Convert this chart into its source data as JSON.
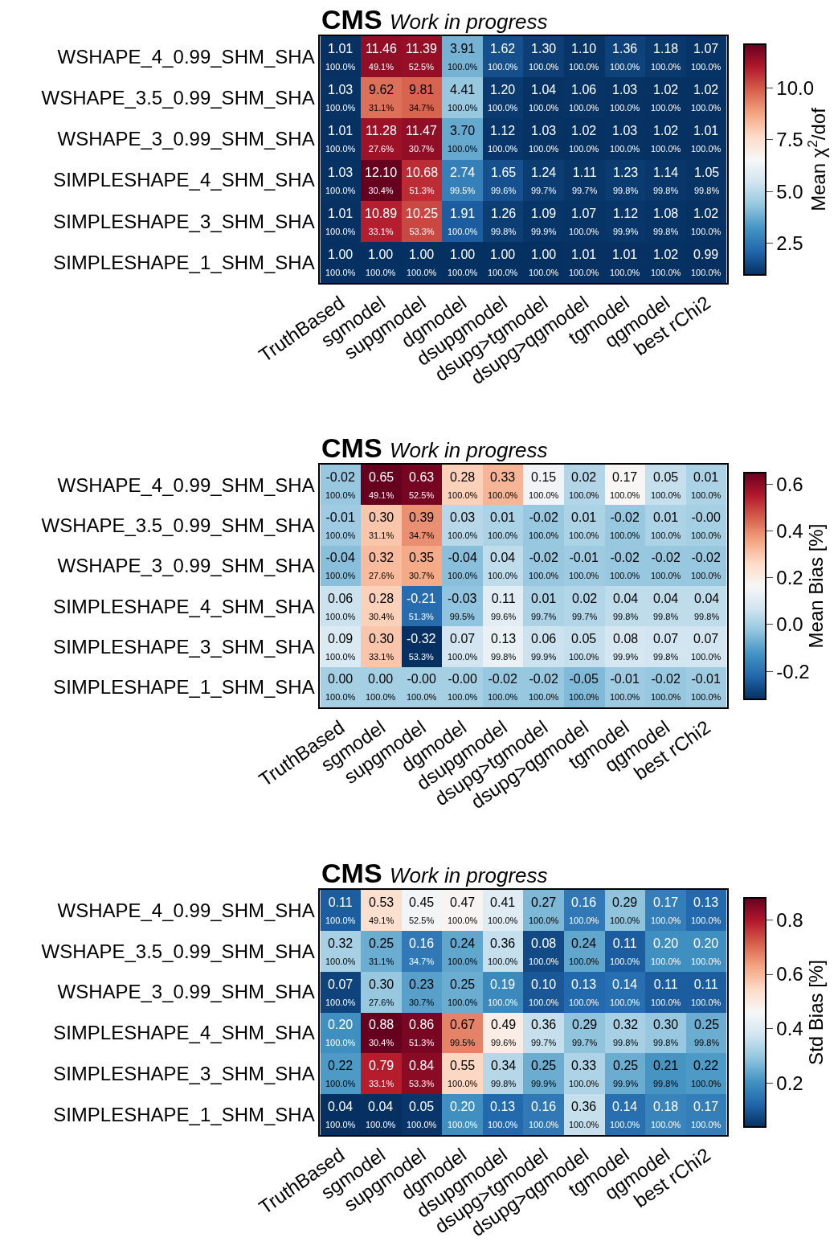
{
  "chart_data": [
    {
      "type": "heatmap",
      "title": "CMS",
      "subtitle": "Work in progress",
      "clabel": "Mean χ$^{2}$/dof",
      "categories": [
        "TruthBased",
        "sgmodel",
        "supgmodel",
        "dgmodel",
        "dsupgmodel",
        "dsupg>tgmodel",
        "dsupg>qgmodel",
        "tgmodel",
        "qgmodel",
        "best rChi2"
      ],
      "y_categories": [
        "WSHAPE_4_0.99_SHM_SHA",
        "WSHAPE_3.5_0.99_SHM_SHA",
        "WSHAPE_3_0.99_SHM_SHA",
        "SIMPLESHAPE_4_SHM_SHA",
        "SIMPLESHAPE_3_SHM_SHA",
        "SIMPLESHAPE_1_SHM_SHA"
      ],
      "cells": [
        [
          1.01,
          11.46,
          11.39,
          3.91,
          1.62,
          1.3,
          1.1,
          1.36,
          1.18,
          1.07
        ],
        [
          1.03,
          9.62,
          9.81,
          4.41,
          1.2,
          1.04,
          1.06,
          1.03,
          1.02,
          1.02
        ],
        [
          1.01,
          11.28,
          11.47,
          3.7,
          1.12,
          1.03,
          1.02,
          1.03,
          1.02,
          1.01
        ],
        [
          1.03,
          12.1,
          10.68,
          2.74,
          1.65,
          1.24,
          1.11,
          1.23,
          1.14,
          1.05
        ],
        [
          1.01,
          10.89,
          10.25,
          1.91,
          1.26,
          1.09,
          1.07,
          1.12,
          1.08,
          1.02
        ],
        [
          1.0,
          1.0,
          1.0,
          1.0,
          1.0,
          1.0,
          1.01,
          1.01,
          1.02,
          0.99
        ]
      ],
      "cell_labels": [
        [
          "1.01\n100.0%",
          "11.46\n49.1%",
          "11.39\n52.5%",
          "3.91\n100.0%",
          "1.62\n100.0%",
          "1.30\n100.0%",
          "1.10\n100.0%",
          "1.36\n100.0%",
          "1.18\n100.0%",
          "1.07\n100.0%"
        ],
        [
          "1.03\n100.0%",
          "9.62\n31.1%",
          "9.81\n34.7%",
          "4.41\n100.0%",
          "1.20\n100.0%",
          "1.04\n100.0%",
          "1.06\n100.0%",
          "1.03\n100.0%",
          "1.02\n100.0%",
          "1.02\n100.0%"
        ],
        [
          "1.01\n100.0%",
          "11.28\n27.6%",
          "11.47\n30.7%",
          "3.70\n100.0%",
          "1.12\n100.0%",
          "1.03\n100.0%",
          "1.02\n100.0%",
          "1.03\n100.0%",
          "1.02\n100.0%",
          "1.01\n100.0%"
        ],
        [
          "1.03\n100.0%",
          "12.10\n30.4%",
          "10.68\n51.3%",
          "2.74\n99.5%",
          "1.65\n99.6%",
          "1.24\n99.7%",
          "1.11\n99.7%",
          "1.23\n99.8%",
          "1.14\n99.8%",
          "1.05\n99.8%"
        ],
        [
          "1.01\n100.0%",
          "10.89\n33.1%",
          "10.25\n53.3%",
          "1.91\n100.0%",
          "1.26\n99.8%",
          "1.09\n99.9%",
          "1.07\n100.0%",
          "1.12\n99.9%",
          "1.08\n99.8%",
          "1.02\n100.0%"
        ],
        [
          "1.00\n100.0%",
          "1.00\n100.0%",
          "1.00\n100.0%",
          "1.00\n100.0%",
          "1.00\n100.0%",
          "1.00\n100.0%",
          "1.01\n100.0%",
          "1.01\n100.0%",
          "1.02\n100.0%",
          "0.99\n100.0%"
        ]
      ],
      "clim": [
        0.99,
        12.1
      ],
      "cticks": [
        {
          "value": 2.5,
          "label": "2.5"
        },
        {
          "value": 5.0,
          "label": "5.0"
        },
        {
          "value": 7.5,
          "label": "7.5"
        },
        {
          "value": 10.0,
          "label": "10.0"
        }
      ]
    },
    {
      "type": "heatmap",
      "title": "CMS",
      "subtitle": "Work in progress",
      "clabel": "Mean Bias [%]",
      "categories": [
        "TruthBased",
        "sgmodel",
        "supgmodel",
        "dgmodel",
        "dsupgmodel",
        "dsupg>tgmodel",
        "dsupg>qgmodel",
        "tgmodel",
        "qgmodel",
        "best rChi2"
      ],
      "y_categories": [
        "WSHAPE_4_0.99_SHM_SHA",
        "WSHAPE_3.5_0.99_SHM_SHA",
        "WSHAPE_3_0.99_SHM_SHA",
        "SIMPLESHAPE_4_SHM_SHA",
        "SIMPLESHAPE_3_SHM_SHA",
        "SIMPLESHAPE_1_SHM_SHA"
      ],
      "cells": [
        [
          -0.02,
          0.65,
          0.63,
          0.28,
          0.33,
          0.15,
          0.02,
          0.17,
          0.05,
          0.01
        ],
        [
          -0.01,
          0.3,
          0.39,
          0.03,
          0.01,
          -0.02,
          0.01,
          -0.02,
          0.01,
          0.0
        ],
        [
          -0.04,
          0.32,
          0.35,
          -0.04,
          0.04,
          -0.02,
          -0.01,
          -0.02,
          -0.02,
          -0.02
        ],
        [
          0.06,
          0.28,
          -0.21,
          -0.03,
          0.11,
          0.01,
          0.02,
          0.04,
          0.04,
          0.04
        ],
        [
          0.09,
          0.3,
          -0.32,
          0.07,
          0.13,
          0.06,
          0.05,
          0.08,
          0.07,
          0.07
        ],
        [
          0.0,
          0.0,
          0.0,
          0.0,
          -0.02,
          -0.02,
          -0.05,
          -0.01,
          -0.02,
          -0.01
        ]
      ],
      "cell_labels": [
        [
          "-0.02\n100.0%",
          "0.65\n49.1%",
          "0.63\n52.5%",
          "0.28\n100.0%",
          "0.33\n100.0%",
          "0.15\n100.0%",
          "0.02\n100.0%",
          "0.17\n100.0%",
          "0.05\n100.0%",
          "0.01\n100.0%"
        ],
        [
          "-0.01\n100.0%",
          "0.30\n31.1%",
          "0.39\n34.7%",
          "0.03\n100.0%",
          "0.01\n100.0%",
          "-0.02\n100.0%",
          "0.01\n100.0%",
          "-0.02\n100.0%",
          "0.01\n100.0%",
          "-0.00\n100.0%"
        ],
        [
          "-0.04\n100.0%",
          "0.32\n27.6%",
          "0.35\n30.7%",
          "-0.04\n100.0%",
          "0.04\n100.0%",
          "-0.02\n100.0%",
          "-0.01\n100.0%",
          "-0.02\n100.0%",
          "-0.02\n100.0%",
          "-0.02\n100.0%"
        ],
        [
          "0.06\n100.0%",
          "0.28\n30.4%",
          "-0.21\n51.3%",
          "-0.03\n99.5%",
          "0.11\n99.6%",
          "0.01\n99.7%",
          "0.02\n99.7%",
          "0.04\n99.8%",
          "0.04\n99.8%",
          "0.04\n99.8%"
        ],
        [
          "0.09\n100.0%",
          "0.30\n33.1%",
          "-0.32\n53.3%",
          "0.07\n100.0%",
          "0.13\n99.8%",
          "0.06\n99.9%",
          "0.05\n100.0%",
          "0.08\n99.9%",
          "0.07\n99.8%",
          "0.07\n100.0%"
        ],
        [
          "0.00\n100.0%",
          "0.00\n100.0%",
          "-0.00\n100.0%",
          "-0.00\n100.0%",
          "-0.02\n100.0%",
          "-0.02\n100.0%",
          "-0.05\n100.0%",
          "-0.01\n100.0%",
          "-0.02\n100.0%",
          "-0.01\n100.0%"
        ]
      ],
      "clim": [
        -0.32,
        0.65
      ],
      "cticks": [
        {
          "value": -0.2,
          "label": "-0.2"
        },
        {
          "value": 0.0,
          "label": "0.0"
        },
        {
          "value": 0.2,
          "label": "0.2"
        },
        {
          "value": 0.4,
          "label": "0.4"
        },
        {
          "value": 0.6,
          "label": "0.6"
        }
      ]
    },
    {
      "type": "heatmap",
      "title": "CMS",
      "subtitle": "Work in progress",
      "clabel": "Std Bias [%]",
      "categories": [
        "TruthBased",
        "sgmodel",
        "supgmodel",
        "dgmodel",
        "dsupgmodel",
        "dsupg>tgmodel",
        "dsupg>qgmodel",
        "tgmodel",
        "qgmodel",
        "best rChi2"
      ],
      "y_categories": [
        "WSHAPE_4_0.99_SHM_SHA",
        "WSHAPE_3.5_0.99_SHM_SHA",
        "WSHAPE_3_0.99_SHM_SHA",
        "SIMPLESHAPE_4_SHM_SHA",
        "SIMPLESHAPE_3_SHM_SHA",
        "SIMPLESHAPE_1_SHM_SHA"
      ],
      "cells": [
        [
          0.11,
          0.53,
          0.45,
          0.47,
          0.41,
          0.27,
          0.16,
          0.29,
          0.17,
          0.13
        ],
        [
          0.32,
          0.25,
          0.16,
          0.24,
          0.36,
          0.08,
          0.24,
          0.11,
          0.2,
          0.2
        ],
        [
          0.07,
          0.3,
          0.23,
          0.25,
          0.19,
          0.1,
          0.13,
          0.14,
          0.11,
          0.11
        ],
        [
          0.2,
          0.88,
          0.86,
          0.67,
          0.49,
          0.36,
          0.29,
          0.32,
          0.3,
          0.25
        ],
        [
          0.22,
          0.79,
          0.84,
          0.55,
          0.34,
          0.25,
          0.33,
          0.25,
          0.21,
          0.22
        ],
        [
          0.04,
          0.04,
          0.05,
          0.2,
          0.13,
          0.16,
          0.36,
          0.14,
          0.18,
          0.17
        ]
      ],
      "cell_labels": [
        [
          "0.11\n100.0%",
          "0.53\n49.1%",
          "0.45\n52.5%",
          "0.47\n100.0%",
          "0.41\n100.0%",
          "0.27\n100.0%",
          "0.16\n100.0%",
          "0.29\n100.0%",
          "0.17\n100.0%",
          "0.13\n100.0%"
        ],
        [
          "0.32\n100.0%",
          "0.25\n31.1%",
          "0.16\n34.7%",
          "0.24\n100.0%",
          "0.36\n100.0%",
          "0.08\n100.0%",
          "0.24\n100.0%",
          "0.11\n100.0%",
          "0.20\n100.0%",
          "0.20\n100.0%"
        ],
        [
          "0.07\n100.0%",
          "0.30\n27.6%",
          "0.23\n30.7%",
          "0.25\n100.0%",
          "0.19\n100.0%",
          "0.10\n100.0%",
          "0.13\n100.0%",
          "0.14\n100.0%",
          "0.11\n100.0%",
          "0.11\n100.0%"
        ],
        [
          "0.20\n100.0%",
          "0.88\n30.4%",
          "0.86\n51.3%",
          "0.67\n99.5%",
          "0.49\n99.6%",
          "0.36\n99.7%",
          "0.29\n99.7%",
          "0.32\n99.8%",
          "0.30\n99.8%",
          "0.25\n99.8%"
        ],
        [
          "0.22\n100.0%",
          "0.79\n33.1%",
          "0.84\n53.3%",
          "0.55\n100.0%",
          "0.34\n99.8%",
          "0.25\n99.9%",
          "0.33\n100.0%",
          "0.25\n99.9%",
          "0.21\n99.8%",
          "0.22\n100.0%"
        ],
        [
          "0.04\n100.0%",
          "0.04\n100.0%",
          "0.05\n100.0%",
          "0.20\n100.0%",
          "0.13\n100.0%",
          "0.16\n100.0%",
          "0.36\n100.0%",
          "0.14\n100.0%",
          "0.18\n100.0%",
          "0.17\n100.0%"
        ]
      ],
      "clim": [
        0.04,
        0.88
      ],
      "cticks": [
        {
          "value": 0.2,
          "label": "0.2"
        },
        {
          "value": 0.4,
          "label": "0.4"
        },
        {
          "value": 0.6,
          "label": "0.6"
        },
        {
          "value": 0.8,
          "label": "0.8"
        }
      ]
    }
  ]
}
